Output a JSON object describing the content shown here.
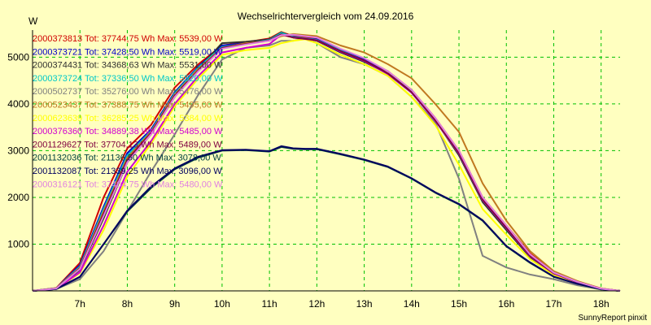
{
  "chart_data": {
    "type": "line",
    "title": "Wechselrichtervergleich vom 24.09.2016",
    "ylabel": "W",
    "xlabel": "",
    "footer": "SunnyReport pinxit",
    "xlim": [
      6,
      18.4
    ],
    "ylim": [
      0,
      5580
    ],
    "x_ticks": [
      7,
      8,
      9,
      10,
      11,
      12,
      13,
      14,
      15,
      16,
      17,
      18
    ],
    "x_tick_labels": [
      "7h",
      "8h",
      "9h",
      "10h",
      "11h",
      "12h",
      "13h",
      "14h",
      "15h",
      "16h",
      "17h",
      "18h"
    ],
    "y_ticks": [
      1000,
      2000,
      3000,
      4000,
      5000
    ],
    "y_tick_labels": [
      "1000",
      "2000",
      "3000",
      "4000",
      "5000"
    ],
    "grid": true,
    "legend_position": "top-left",
    "x": [
      6.0,
      6.5,
      7.0,
      7.5,
      8.0,
      8.5,
      9.0,
      9.5,
      10.0,
      10.5,
      11.0,
      11.25,
      11.5,
      11.75,
      12.0,
      12.5,
      13.0,
      13.5,
      14.0,
      14.5,
      15.0,
      15.5,
      16.0,
      16.5,
      17.0,
      17.5,
      18.0,
      18.4
    ],
    "series": [
      {
        "name": "2000373813",
        "legend": "2000373813 Tot: 37744,75 Wh Max: 5539,00 W",
        "color": "#d00000",
        "values": [
          0,
          60,
          600,
          2000,
          3050,
          3550,
          4350,
          4850,
          5250,
          5320,
          5400,
          5539,
          5450,
          5420,
          5400,
          5150,
          4950,
          4700,
          4300,
          3700,
          3000,
          2000,
          1400,
          800,
          400,
          200,
          50,
          0
        ]
      },
      {
        "name": "2000373721",
        "legend": "2000373721 Tot: 37428,50 Wh Max: 5519,00 W",
        "color": "#0000c8",
        "values": [
          0,
          55,
          550,
          1800,
          2950,
          3450,
          4250,
          4800,
          5250,
          5300,
          5380,
          5519,
          5440,
          5400,
          5380,
          5150,
          4950,
          4650,
          4250,
          3650,
          2950,
          1950,
          1350,
          750,
          380,
          190,
          45,
          0
        ]
      },
      {
        "name": "2000374431",
        "legend": "2000374431 Tot: 34368,63 Wh Max: 5531,00 W",
        "color": "#303030",
        "values": [
          0,
          50,
          450,
          1550,
          2750,
          3350,
          4150,
          4750,
          5300,
          5330,
          5380,
          5531,
          5430,
          5400,
          5350,
          5100,
          4900,
          4650,
          4300,
          3650,
          2900,
          1900,
          1300,
          720,
          360,
          180,
          40,
          0
        ]
      },
      {
        "name": "2000373724",
        "legend": "2000373724 Tot: 37336,50 Wh Max: 5520,00 W",
        "color": "#00c8c8",
        "values": [
          0,
          55,
          520,
          1750,
          2900,
          3420,
          4220,
          4780,
          5220,
          5290,
          5370,
          5520,
          5430,
          5400,
          5370,
          5140,
          4930,
          4640,
          4240,
          3640,
          2940,
          1940,
          1340,
          740,
          370,
          185,
          45,
          0
        ]
      },
      {
        "name": "2000502737",
        "legend": "2000502737 Tot: 35276,00 Wh Max: 5476,00 W",
        "color": "#808080",
        "values": [
          0,
          40,
          250,
          850,
          1700,
          2550,
          3350,
          4200,
          4950,
          5200,
          5250,
          5350,
          5350,
          5400,
          5300,
          5000,
          4850,
          4600,
          4150,
          3600,
          2400,
          750,
          500,
          350,
          250,
          120,
          30,
          0
        ]
      },
      {
        "name": "2000523437",
        "legend": "2000523437 Tot: 37388,75 Wh Max: 5495,00 W",
        "color": "#c07820",
        "values": [
          0,
          55,
          500,
          1700,
          2850,
          3400,
          4200,
          4750,
          5200,
          5300,
          5350,
          5450,
          5495,
          5470,
          5450,
          5250,
          5100,
          4850,
          4550,
          4000,
          3400,
          2300,
          1500,
          850,
          420,
          210,
          50,
          0
        ]
      },
      {
        "name": "2000623639",
        "legend": "2000623639 Tot: 36285,25 Wh Max: 5384,00 W",
        "color": "#ffff00",
        "values": [
          0,
          45,
          380,
          1300,
          2450,
          3150,
          3950,
          4550,
          5050,
          5150,
          5200,
          5300,
          5350,
          5384,
          5300,
          5050,
          4850,
          4600,
          4150,
          3550,
          2700,
          1750,
          1200,
          680,
          340,
          170,
          40,
          0
        ]
      },
      {
        "name": "2000376360",
        "legend": "2000376360 Tot: 34889,38 Wh Max: 5485,00 W",
        "color": "#d000d0",
        "values": [
          0,
          45,
          400,
          1400,
          2550,
          3200,
          4000,
          4600,
          5100,
          5200,
          5280,
          5485,
          5420,
          5390,
          5360,
          5120,
          4920,
          4640,
          4240,
          3640,
          2940,
          1940,
          1340,
          740,
          370,
          185,
          45,
          0
        ]
      },
      {
        "name": "2001129627",
        "legend": "2001129627 Tot: 37704,13 Wh Max: 5489,00 W",
        "color": "#800040",
        "values": [
          0,
          50,
          480,
          1650,
          2800,
          3380,
          4180,
          4720,
          5200,
          5280,
          5360,
          5489,
          5420,
          5390,
          5360,
          5130,
          4930,
          4650,
          4250,
          3650,
          2950,
          1950,
          1350,
          750,
          375,
          190,
          45,
          0
        ]
      },
      {
        "name": "2001132036",
        "legend": "2001132036 Tot: 21136,50 Wh Max: 3078,00 W",
        "color": "#004040",
        "values": [
          0,
          40,
          300,
          1000,
          1700,
          2200,
          2600,
          2850,
          3000,
          3010,
          2980,
          3078,
          3040,
          3030,
          3030,
          2920,
          2800,
          2650,
          2400,
          2100,
          1850,
          1500,
          950,
          600,
          300,
          150,
          35,
          0
        ]
      },
      {
        "name": "2001132087",
        "legend": "2001132087 Tot: 21339,25 Wh Max: 3096,00 W",
        "color": "#000060",
        "values": [
          0,
          40,
          300,
          1000,
          1720,
          2230,
          2620,
          2870,
          3010,
          3020,
          2990,
          3096,
          3050,
          3040,
          3040,
          2930,
          2810,
          2660,
          2410,
          2110,
          1860,
          1510,
          960,
          610,
          305,
          152,
          36,
          0
        ]
      },
      {
        "name": "2000316121",
        "legend": "2000316121 Tot: 37404,75 Wh Max: 5480,00 W",
        "color": "#e080e0",
        "values": [
          0,
          50,
          470,
          1600,
          2750,
          3350,
          4150,
          4700,
          5180,
          5270,
          5350,
          5470,
          5480,
          5450,
          5420,
          5180,
          4980,
          4700,
          4300,
          3700,
          3000,
          2000,
          1400,
          780,
          390,
          195,
          45,
          0
        ]
      }
    ]
  }
}
